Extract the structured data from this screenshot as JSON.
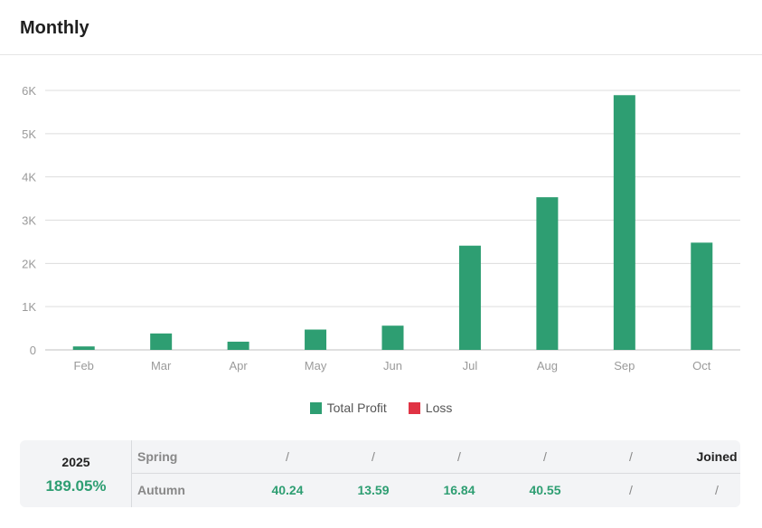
{
  "header": {
    "title": "Monthly"
  },
  "chart_data": {
    "type": "bar",
    "categories": [
      "Feb",
      "Mar",
      "Apr",
      "May",
      "Jun",
      "Jul",
      "Aug",
      "Sep",
      "Oct"
    ],
    "series": [
      {
        "name": "Total Profit",
        "values": [
          80,
          380,
          190,
          470,
          560,
          2410,
          3530,
          5890,
          2480
        ],
        "color": "#2e9e72"
      },
      {
        "name": "Loss",
        "values": [
          0,
          0,
          0,
          0,
          0,
          0,
          0,
          0,
          0
        ],
        "color": "#e03344"
      }
    ],
    "ylim": [
      0,
      6000
    ],
    "yticks": [
      0,
      1000,
      2000,
      3000,
      4000,
      5000,
      6000
    ],
    "ytick_labels": [
      "0",
      "1K",
      "2K",
      "3K",
      "4K",
      "5K",
      "6K"
    ],
    "grid": true,
    "legend": "bottom-center"
  },
  "legend": {
    "profit_label": "Total Profit",
    "profit_color": "#2e9e72",
    "loss_label": "Loss",
    "loss_color": "#e03344"
  },
  "summary": {
    "year": "2025",
    "ytd": "189.05%",
    "rows": [
      {
        "label": "Spring",
        "cells": [
          "/",
          "/",
          "/",
          "/",
          "/",
          "Joined"
        ]
      },
      {
        "label": "Autumn",
        "cells": [
          "40.24",
          "13.59",
          "16.84",
          "40.55",
          "/",
          "/"
        ]
      }
    ]
  }
}
